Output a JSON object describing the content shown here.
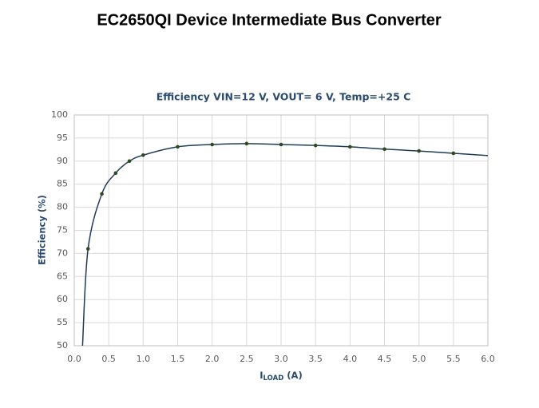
{
  "chart_data": {
    "type": "line",
    "page_title": "EC2650QI Device Intermediate Bus Converter",
    "title": "Efficiency VIN=12 V, VOUT= 6 V, Temp=+25 C",
    "ylabel": "Efficiency (%)",
    "xlabel": {
      "main": "I",
      "subscript": "LOAD",
      "unit": " (A)"
    },
    "series": [
      {
        "color": "#1f3b5a",
        "marker_color": "#2e4a1e",
        "x": [
          0.12,
          0.2,
          0.4,
          0.6,
          0.8,
          1.0,
          1.5,
          2.0,
          2.5,
          3.0,
          3.5,
          4.0,
          4.5,
          5.0,
          5.5,
          6.0
        ],
        "values": [
          50,
          71,
          82.9,
          87.4,
          90,
          91.3,
          93.1,
          93.6,
          93.8,
          93.6,
          93.4,
          93.1,
          92.6,
          92.2,
          91.7,
          91.2
        ],
        "markers": [
          false,
          true,
          true,
          true,
          true,
          true,
          true,
          true,
          true,
          true,
          true,
          true,
          true,
          true,
          true,
          false
        ]
      }
    ],
    "xlim": [
      0,
      6
    ],
    "xticks": [
      {
        "value": 0,
        "label": "0.0"
      },
      0.5,
      {
        "value": 1,
        "label": "1.0"
      },
      1.5,
      {
        "value": 2,
        "label": "2.0"
      },
      2.5,
      {
        "value": 3,
        "label": "3.0"
      },
      3.5,
      {
        "value": 4,
        "label": "4.0"
      },
      4.5,
      {
        "value": 5,
        "label": "5.0"
      },
      5.5,
      {
        "value": 6,
        "label": "6.0"
      }
    ],
    "ylim": [
      50,
      100
    ],
    "yticks": [
      50,
      55,
      60,
      65,
      70,
      75,
      80,
      85,
      90,
      95,
      100
    ],
    "grid": true
  }
}
